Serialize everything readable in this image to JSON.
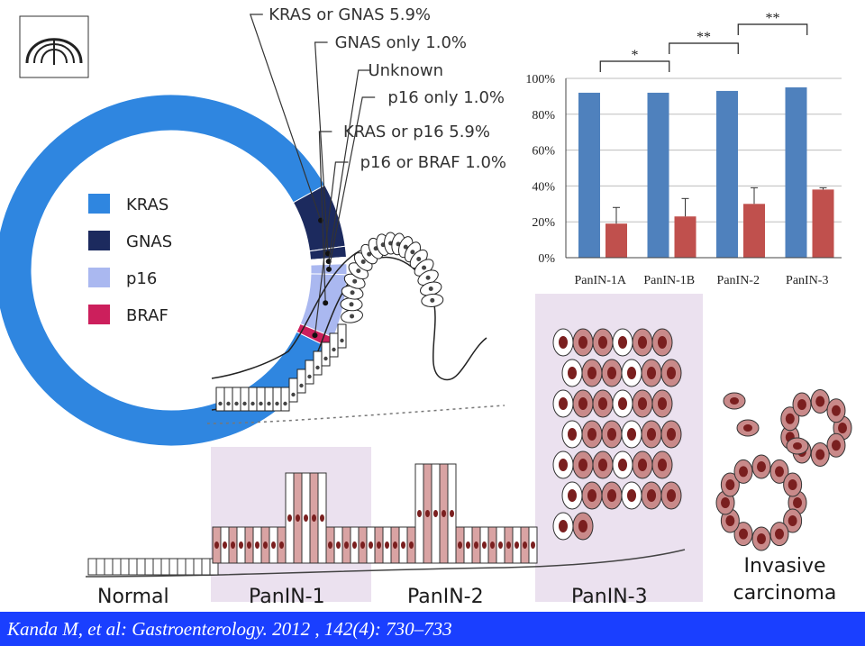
{
  "chart_data": [
    {
      "type": "pie",
      "title": "",
      "slices": [
        {
          "label": "KRAS",
          "value": 85.2,
          "color": "#2f86e0"
        },
        {
          "label": "KRAS or GNAS 5.9%",
          "value": 5.9,
          "color": "#1c2a5e"
        },
        {
          "label": "GNAS only 1.0%",
          "value": 1.0,
          "color": "#1c2a5e"
        },
        {
          "label": "Unknown",
          "value": 0.6,
          "color": "#ffffff"
        },
        {
          "label": "p16 only 1.0%",
          "value": 1.0,
          "color": "#aab8f0"
        },
        {
          "label": "KRAS or p16 5.9%",
          "value": 5.9,
          "color": "#aab8f0"
        },
        {
          "label": "p16 or BRAF 1.0%",
          "value": 1.0,
          "color": "#cc1f5c"
        }
      ],
      "legend": [
        {
          "label": "KRAS",
          "color": "#2f86e0"
        },
        {
          "label": "GNAS",
          "color": "#1c2a5e"
        },
        {
          "label": "p16",
          "color": "#aab8f0"
        },
        {
          "label": "BRAF",
          "color": "#cc1f5c"
        }
      ],
      "legend_placement": "center"
    },
    {
      "type": "bar",
      "title": "",
      "categories": [
        "PanIN-1A",
        "PanIN-1B",
        "PanIN-2",
        "PanIN-3"
      ],
      "series": [
        {
          "values": [
            92,
            92,
            93,
            95
          ],
          "color": "#4f81bd"
        },
        {
          "values": [
            19,
            23,
            30,
            38
          ],
          "errors": [
            9,
            10,
            9,
            1
          ],
          "color": "#c0504d"
        }
      ],
      "ylim": [
        0,
        100
      ],
      "yticks": [
        "0%",
        "20%",
        "40%",
        "60%",
        "80%",
        "100%"
      ],
      "grid": true,
      "significance": [
        {
          "from": 0,
          "to": 1,
          "label": "*"
        },
        {
          "from": 1,
          "to": 2,
          "label": "**"
        },
        {
          "from": 2,
          "to": 3,
          "label": "**"
        }
      ]
    }
  ],
  "diagram": {
    "stages": [
      "Normal",
      "PanIN-1",
      "PanIN-2",
      "PanIN-3"
    ],
    "invasive": [
      "Invasive",
      "carcinoma"
    ]
  },
  "citation": "Kanda M, et al: Gastroenterology. 2012 , 142(4): 730–733"
}
